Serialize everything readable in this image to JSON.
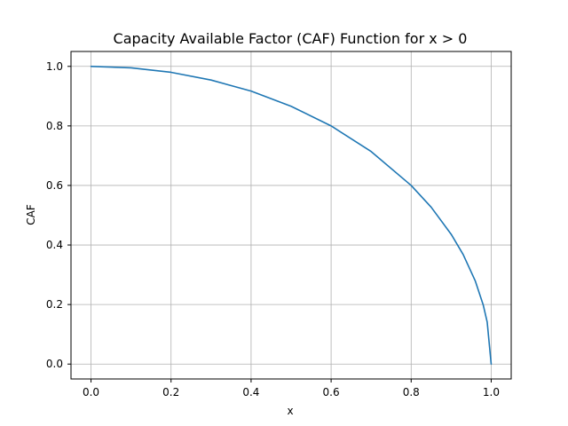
{
  "chart_data": {
    "type": "line",
    "title": "Capacity Available Factor (CAF) Function for x > 0",
    "xlabel": "x",
    "ylabel": "CAF",
    "xlim": [
      -0.05,
      1.05
    ],
    "ylim": [
      -0.05,
      1.05
    ],
    "grid": true,
    "x_ticks": [
      0.0,
      0.2,
      0.4,
      0.6,
      0.8,
      1.0
    ],
    "y_ticks": [
      0.0,
      0.2,
      0.4,
      0.6,
      0.8,
      1.0
    ],
    "x_tick_labels": [
      "0.0",
      "0.2",
      "0.4",
      "0.6",
      "0.8",
      "1.0"
    ],
    "y_tick_labels": [
      "0.0",
      "0.2",
      "0.4",
      "0.6",
      "0.8",
      "1.0"
    ],
    "series": [
      {
        "color": "#1f77b4",
        "x": [
          0.0,
          0.1,
          0.2,
          0.3,
          0.4,
          0.5,
          0.6,
          0.7,
          0.8,
          0.85,
          0.9,
          0.93,
          0.96,
          0.98,
          0.99,
          1.0
        ],
        "y": [
          1.0,
          0.995,
          0.98,
          0.954,
          0.917,
          0.866,
          0.8,
          0.714,
          0.6,
          0.527,
          0.436,
          0.368,
          0.28,
          0.199,
          0.141,
          0.0
        ]
      }
    ]
  }
}
